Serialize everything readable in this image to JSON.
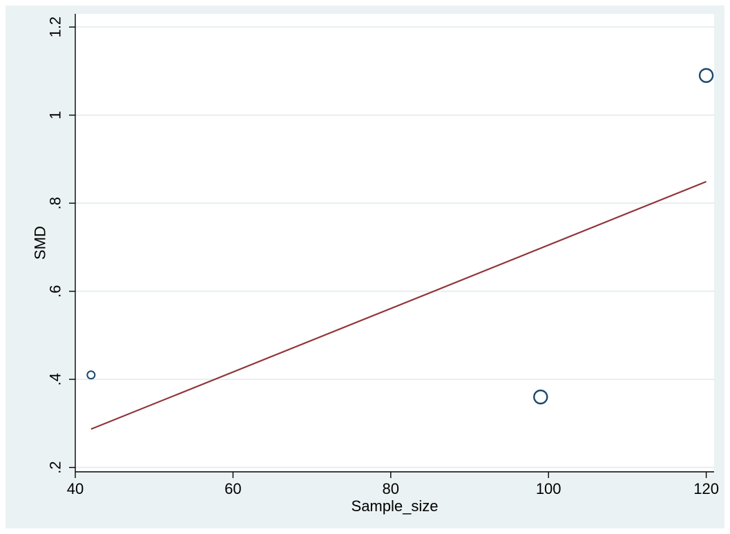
{
  "chart_data": {
    "type": "scatter",
    "title": "",
    "xlabel": "Sample_size",
    "ylabel": "SMD",
    "xlim": [
      40,
      121
    ],
    "ylim": [
      0.19,
      1.23
    ],
    "xticks": [
      40,
      60,
      80,
      100,
      120
    ],
    "xtick_labels": [
      "40",
      "60",
      "80",
      "100",
      "120"
    ],
    "yticks": [
      0.2,
      0.4,
      0.6,
      0.8,
      1,
      1.2
    ],
    "ytick_labels": [
      ".2",
      ".4",
      ".6",
      ".8",
      "1",
      "1.2"
    ],
    "grid": true,
    "series": [
      {
        "type": "scatter",
        "marker": "hollow-circle",
        "color": "#1a476f",
        "points": [
          {
            "x": 42,
            "y": 0.41,
            "weight": "small"
          },
          {
            "x": 99,
            "y": 0.36,
            "weight": "large"
          },
          {
            "x": 120,
            "y": 1.09,
            "weight": "large"
          }
        ]
      },
      {
        "type": "line",
        "color": "#90353b",
        "points": [
          {
            "x": 42,
            "y": 0.287
          },
          {
            "x": 120,
            "y": 0.849
          }
        ]
      }
    ],
    "colors": {
      "background": "#eaf2f3",
      "plot_area": "#ffffff",
      "gridline": "#e7eef1"
    }
  }
}
